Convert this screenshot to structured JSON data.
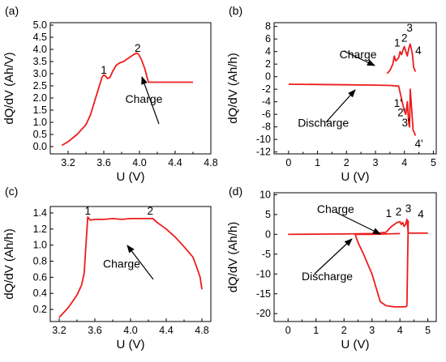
{
  "chart_data": [
    {
      "panel_label": "(a)",
      "type": "line",
      "xlabel": "U (V)",
      "ylabel": "dQ/dV (Ah/V)",
      "xlim": [
        3.0,
        4.8
      ],
      "ylim": [
        -0.3,
        5.1
      ],
      "xticks": [
        "3.2",
        "3.6",
        "4.0",
        "4.4",
        "4.8"
      ],
      "yticks": [
        "0.0",
        "0.5",
        "1.0",
        "1.5",
        "2.0",
        "2.5",
        "3.0",
        "3.5",
        "4.0",
        "4.5",
        "5.0"
      ],
      "series": [
        {
          "color": "#ee1c1c",
          "x": [
            3.13,
            3.2,
            3.3,
            3.4,
            3.45,
            3.5,
            3.55,
            3.58,
            3.6,
            3.62,
            3.64,
            3.67,
            3.7,
            3.74,
            3.78,
            3.82,
            3.86,
            3.9,
            3.94,
            3.97,
            3.99,
            4.02,
            4.06,
            4.1,
            4.3,
            4.6
          ],
          "y": [
            0.05,
            0.2,
            0.5,
            0.9,
            1.3,
            1.9,
            2.5,
            2.85,
            2.95,
            2.9,
            2.8,
            2.85,
            3.1,
            3.35,
            3.45,
            3.5,
            3.6,
            3.7,
            3.8,
            3.85,
            3.8,
            3.6,
            3.2,
            2.65,
            2.65,
            2.65
          ]
        }
      ],
      "annotations": [
        {
          "text": "1",
          "x": 3.6,
          "y": 3.0
        },
        {
          "text": "2",
          "x": 3.98,
          "y": 3.9
        },
        {
          "text": "Charge",
          "x": 4.05,
          "y": 1.8
        }
      ]
    },
    {
      "panel_label": "(b)",
      "type": "line",
      "xlabel": "U (V)",
      "ylabel": "dQ/dV (Ah/h)",
      "xlim": [
        -0.5,
        5.1
      ],
      "ylim": [
        -12.3,
        8.6
      ],
      "xticks": [
        "0",
        "1",
        "2",
        "3",
        "4",
        "5"
      ],
      "yticks": [
        "8",
        "6",
        "4",
        "2",
        "0",
        "-2",
        "-4",
        "-6",
        "-8",
        "-10",
        "-12"
      ],
      "series": [
        {
          "name": "Charge",
          "color": "#ee1c1c",
          "x": [
            3.4,
            3.5,
            3.6,
            3.65,
            3.7,
            3.8,
            3.85,
            3.9,
            3.95,
            4.0,
            4.05,
            4.1,
            4.15,
            4.2,
            4.25,
            4.28,
            4.32,
            4.38
          ],
          "y": [
            0.5,
            1.0,
            2.0,
            3.3,
            2.5,
            3.0,
            4.0,
            3.5,
            4.2,
            4.8,
            4.0,
            3.3,
            4.5,
            5.2,
            4.2,
            3.4,
            1.5,
            0.8
          ]
        },
        {
          "name": "Discharge",
          "color": "#ee1c1c",
          "x": [
            0.0,
            1.0,
            2.0,
            3.0,
            3.5,
            3.8,
            3.9,
            3.95,
            4.0,
            4.05,
            4.1,
            4.15,
            4.18,
            4.2,
            4.25,
            4.3,
            4.35,
            4.38
          ],
          "y": [
            -1.2,
            -1.25,
            -1.3,
            -1.35,
            -1.4,
            -1.5,
            -3.5,
            -4.5,
            -5.5,
            -6.0,
            -4.0,
            -7.5,
            -8.0,
            -2.0,
            -5.0,
            -8.5,
            -9.0,
            -9.4
          ]
        }
      ],
      "annotations": [
        {
          "text": "Charge",
          "x": 2.4,
          "y": 2.9
        },
        {
          "text": "Discharge",
          "x": 1.2,
          "y": -8.0
        },
        {
          "text": "1",
          "x": 3.75,
          "y": 4.8
        },
        {
          "text": "2",
          "x": 4.0,
          "y": 5.6
        },
        {
          "text": "3",
          "x": 4.18,
          "y": 7.2
        },
        {
          "text": "4",
          "x": 4.48,
          "y": 3.6
        },
        {
          "text": "1'",
          "x": 3.78,
          "y": -4.8
        },
        {
          "text": "2'",
          "x": 3.9,
          "y": -6.3
        },
        {
          "text": "3'",
          "x": 4.05,
          "y": -7.9
        },
        {
          "text": "4'",
          "x": 4.5,
          "y": -11.3
        }
      ]
    },
    {
      "panel_label": "(c)",
      "type": "line",
      "xlabel": "U (V)",
      "ylabel": "dQ/dV (Ah/h)",
      "xlim": [
        3.1,
        4.9
      ],
      "ylim": [
        0.05,
        1.48
      ],
      "xticks": [
        "3.2",
        "3.6",
        "4.0",
        "4.4",
        "4.8"
      ],
      "yticks": [
        "0.2",
        "0.4",
        "0.6",
        "0.8",
        "1.0",
        "1.2",
        "1.4"
      ],
      "series": [
        {
          "color": "#ee1c1c",
          "x": [
            3.2,
            3.3,
            3.4,
            3.45,
            3.48,
            3.5,
            3.52,
            3.55,
            3.6,
            3.7,
            3.8,
            3.9,
            4.0,
            4.1,
            4.2,
            4.25,
            4.3,
            4.35,
            4.4,
            4.5,
            4.6,
            4.7,
            4.75,
            4.78,
            4.8
          ],
          "y": [
            0.1,
            0.22,
            0.38,
            0.5,
            0.65,
            1.0,
            1.35,
            1.31,
            1.32,
            1.32,
            1.33,
            1.32,
            1.33,
            1.33,
            1.33,
            1.33,
            1.28,
            1.24,
            1.2,
            1.1,
            0.98,
            0.85,
            0.7,
            0.6,
            0.45
          ]
        }
      ],
      "annotations": [
        {
          "text": "1",
          "x": 3.52,
          "y": 1.38
        },
        {
          "text": "2",
          "x": 4.22,
          "y": 1.38
        },
        {
          "text": "Charge",
          "x": 3.9,
          "y": 0.72
        }
      ]
    },
    {
      "panel_label": "(d)",
      "type": "line",
      "xlabel": "U (V)",
      "ylabel": "dQ/dV (Ah/h)",
      "xlim": [
        -0.5,
        5.3
      ],
      "ylim": [
        -22,
        10.5
      ],
      "xticks": [
        "0",
        "1",
        "2",
        "3",
        "4",
        "5"
      ],
      "yticks": [
        "10",
        "5",
        "0",
        "-5",
        "-10",
        "-15",
        "-20"
      ],
      "series": [
        {
          "name": "Charge",
          "color": "#ee1c1c",
          "x": [
            0.0,
            1.0,
            2.0,
            3.0,
            3.5,
            3.7,
            3.8,
            3.9,
            4.0,
            4.05,
            4.1,
            4.15,
            4.2,
            4.25,
            4.3,
            5.0
          ],
          "y": [
            0.0,
            0.05,
            0.1,
            0.2,
            0.5,
            2.0,
            2.5,
            3.0,
            3.2,
            2.5,
            3.0,
            2.0,
            2.5,
            3.8,
            0.3,
            0.3
          ]
        },
        {
          "name": "Discharge",
          "color": "#ee1c1c",
          "x": [
            4.3,
            4.28,
            4.25,
            4.2,
            4.0,
            3.8,
            3.5,
            3.3,
            3.0,
            2.7,
            2.5,
            2.4,
            2.5,
            3.0,
            4.0
          ],
          "y": [
            3.5,
            -5.0,
            -18.0,
            -18.3,
            -18.3,
            -18.3,
            -18.0,
            -17.0,
            -10.0,
            -5.0,
            -2.0,
            0.0,
            0.0,
            0.0,
            0.2
          ]
        }
      ],
      "annotations": [
        {
          "text": "Charge",
          "x": 1.7,
          "y": 5.4
        },
        {
          "text": "Discharge",
          "x": 1.4,
          "y": -11.6
        },
        {
          "text": "1",
          "x": 3.6,
          "y": 4.4
        },
        {
          "text": "2",
          "x": 3.95,
          "y": 4.8
        },
        {
          "text": "3",
          "x": 4.3,
          "y": 5.6
        },
        {
          "text": "4",
          "x": 4.75,
          "y": 4.2
        }
      ]
    }
  ]
}
